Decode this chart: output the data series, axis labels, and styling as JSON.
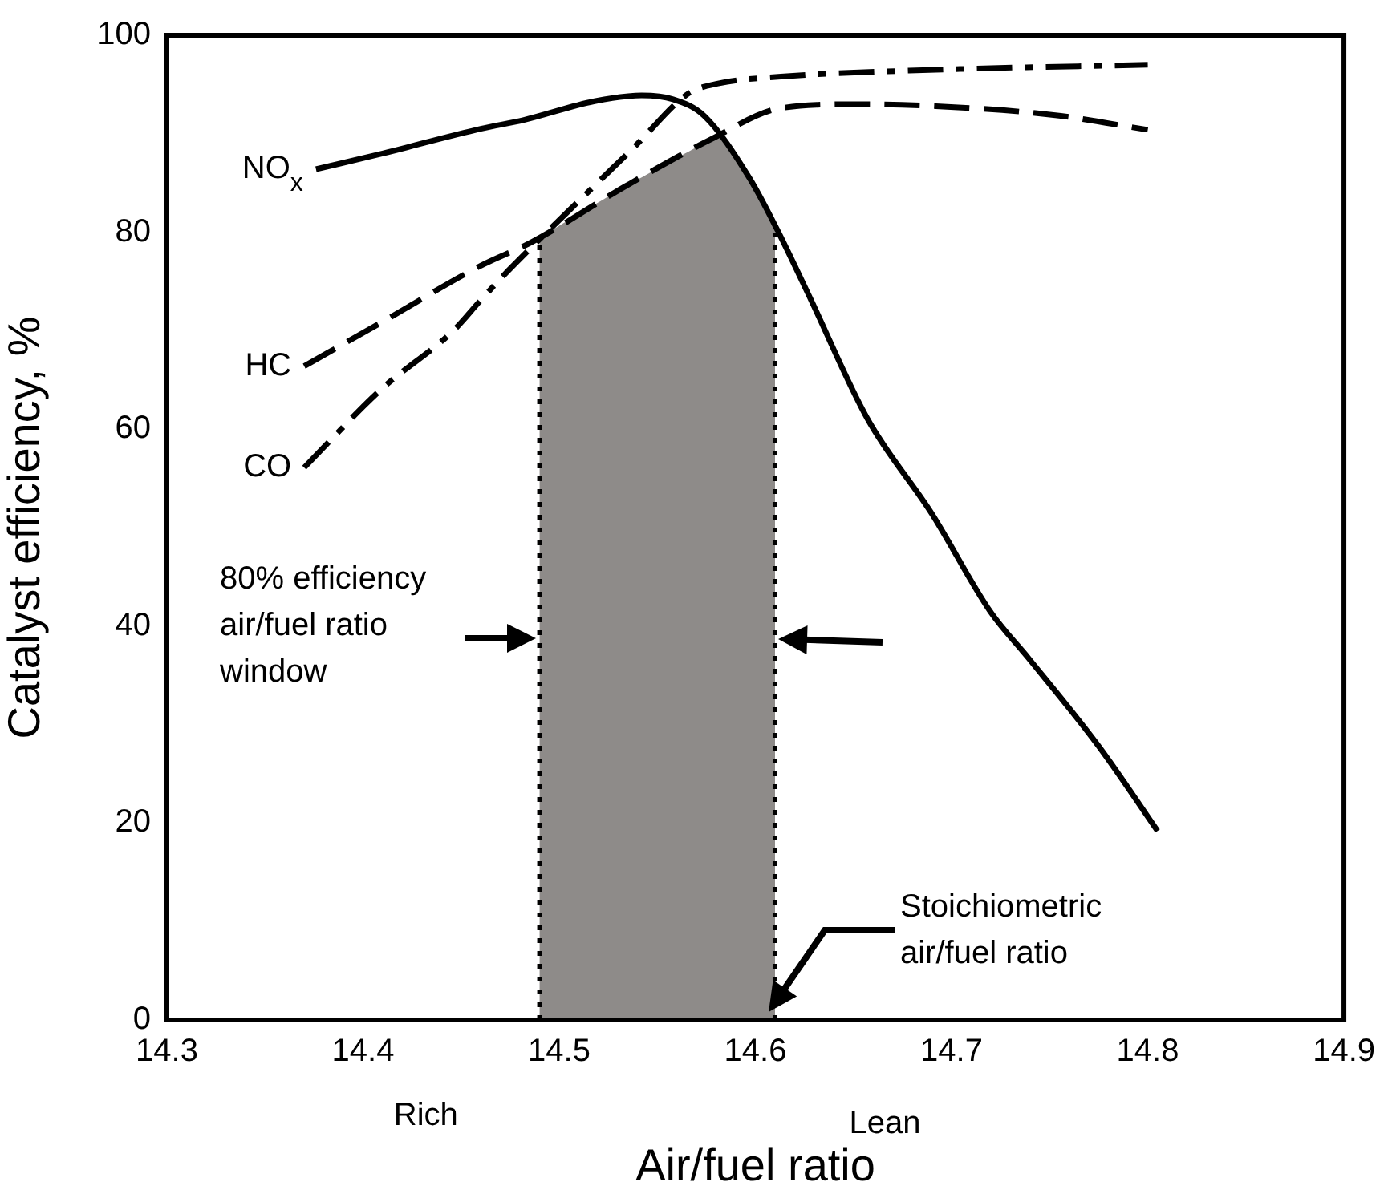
{
  "chart_data": {
    "type": "line",
    "xlabel": "Air/fuel ratio",
    "ylabel": "Catalyst efficiency, %",
    "xlim": [
      14.3,
      14.9
    ],
    "xticks": [
      14.3,
      14.4,
      14.5,
      14.6,
      14.7,
      14.8,
      14.9
    ],
    "ylim": [
      0,
      100
    ],
    "yticks": [
      0,
      20,
      40,
      60,
      80,
      100
    ],
    "grid": false,
    "legend": false,
    "marker": "none",
    "series": [
      {
        "name": "NO$_{x}$",
        "color": "#000000",
        "line_style": "solid",
        "x": [
          14.376,
          14.41,
          14.46,
          14.482,
          14.518,
          14.542,
          14.558,
          14.574,
          14.597,
          14.611,
          14.627,
          14.657,
          14.69,
          14.72,
          14.739,
          14.775,
          14.805
        ],
        "values": [
          86.4,
          88,
          90.5,
          91.4,
          93.3,
          93.9,
          93.5,
          91.8,
          85.5,
          80.3,
          73.7,
          61.1,
          51.4,
          41.4,
          36.8,
          27.8,
          19.2
        ]
      },
      {
        "name": "HC",
        "color": "#000000",
        "line_style": "dashed",
        "x": [
          14.37,
          14.409,
          14.46,
          14.486,
          14.534,
          14.577,
          14.613,
          14.653,
          14.692,
          14.752,
          14.8
        ],
        "values": [
          66.4,
          70.8,
          76.6,
          79,
          84.7,
          89.4,
          92.6,
          93,
          92.8,
          91.9,
          90.4
        ]
      },
      {
        "name": "CO",
        "color": "#000000",
        "line_style": "dashdot",
        "x": [
          14.37,
          14.409,
          14.446,
          14.46,
          14.474,
          14.506,
          14.538,
          14.566,
          14.581,
          14.613,
          14.692,
          14.8
        ],
        "values": [
          56.1,
          64,
          70,
          73.1,
          76.1,
          82.4,
          88.6,
          94.1,
          95.1,
          95.8,
          96.5,
          97
        ]
      }
    ],
    "bands": [
      {
        "axis": "x",
        "from": 14.49,
        "to": 14.61,
        "color": "#8e8b89"
      }
    ],
    "ref_lines": [
      {
        "axis": "x",
        "value": 14.49,
        "line_style": "dotted"
      },
      {
        "axis": "x",
        "value": 14.61,
        "line_style": "dotted"
      }
    ],
    "annotations": [
      "80% efficiency air/fuel ratio window",
      "Stoichiometric air/fuel ratio",
      "Rich",
      "Lean"
    ]
  }
}
